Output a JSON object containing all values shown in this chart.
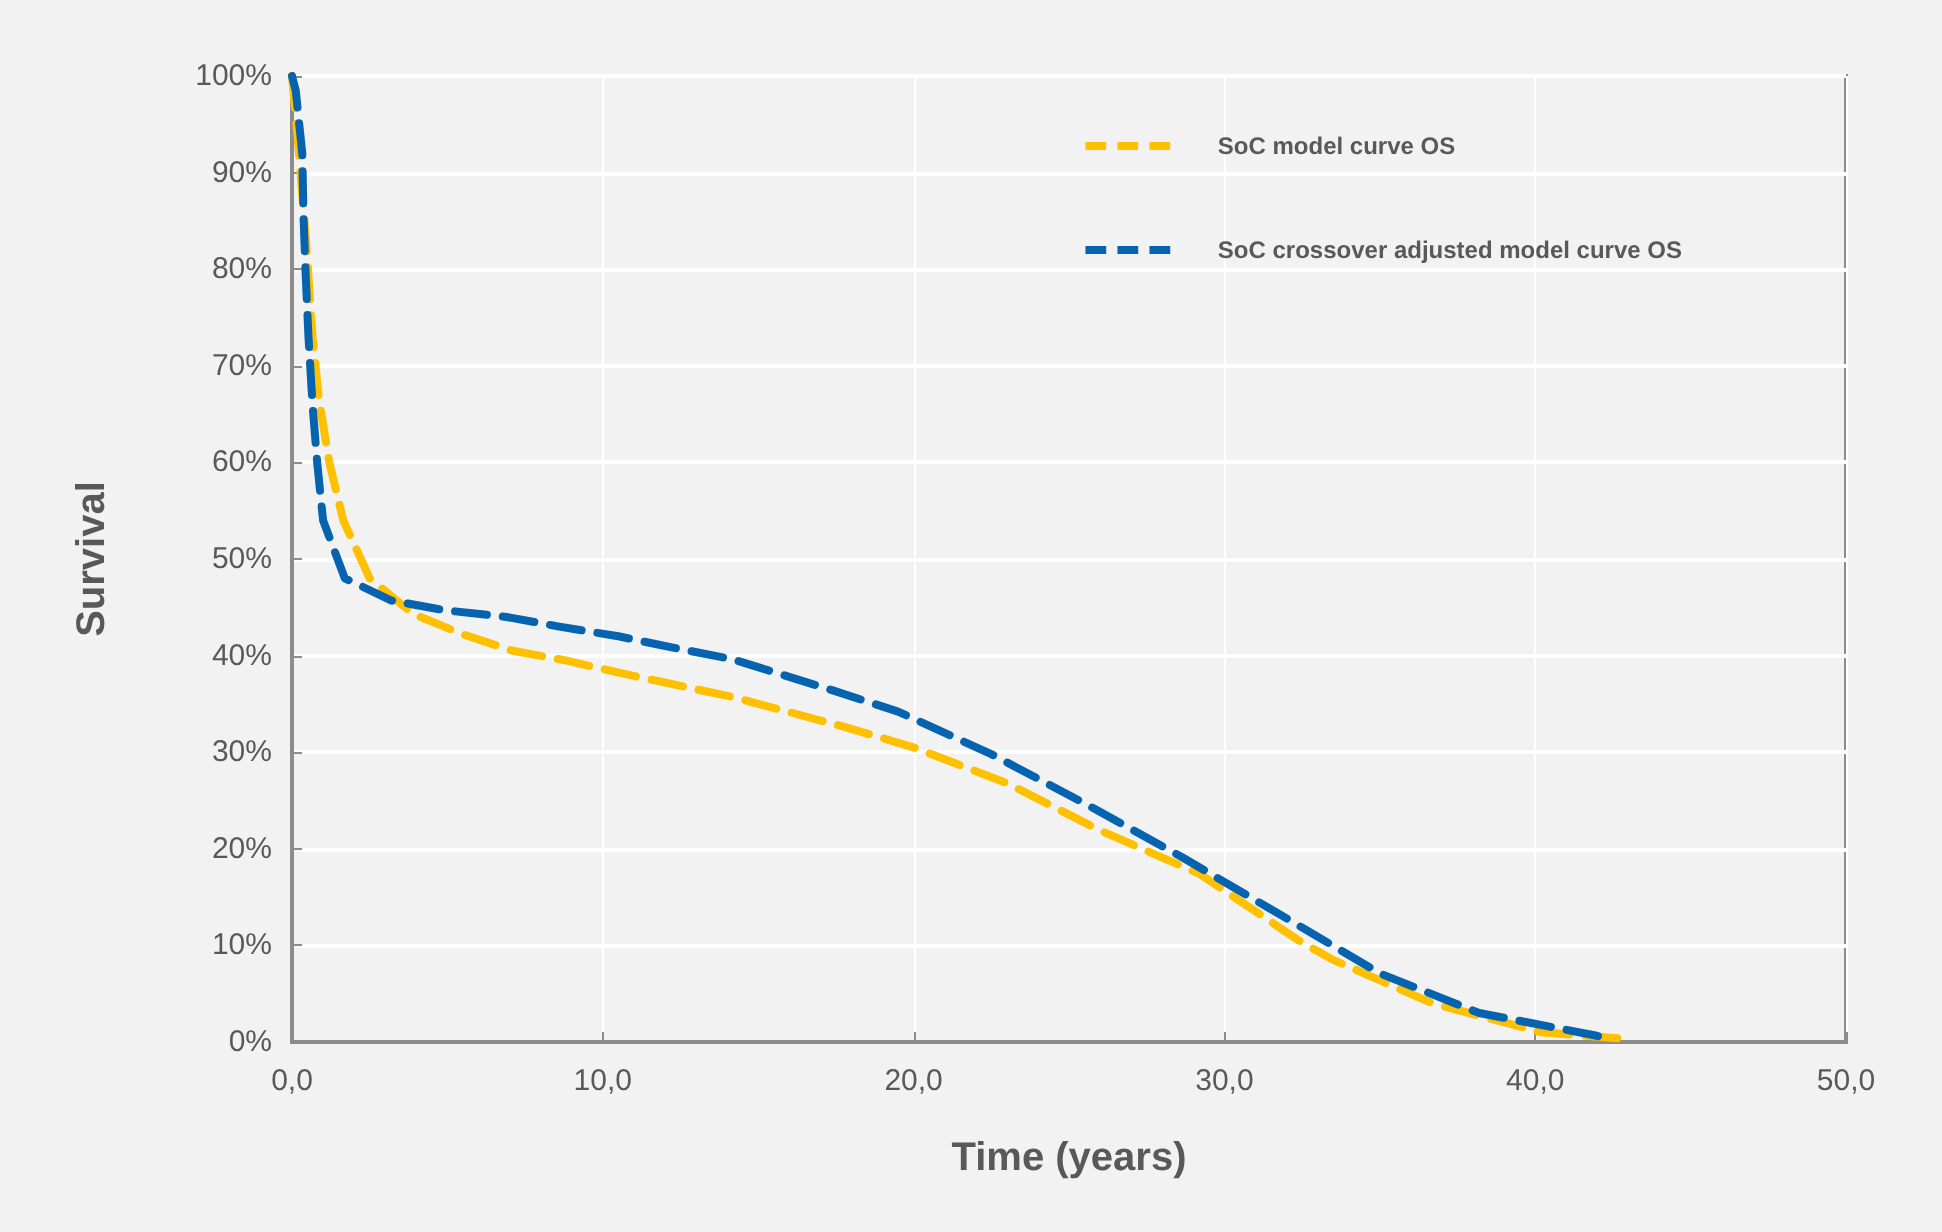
{
  "chart_data": {
    "type": "line",
    "xlabel": "Time (years)",
    "ylabel": "Survival",
    "xlim": [
      0,
      50
    ],
    "ylim": [
      0,
      100
    ],
    "xticks": [
      {
        "value": 0,
        "label": "0,0"
      },
      {
        "value": 10,
        "label": "10,0"
      },
      {
        "value": 20,
        "label": "20,0"
      },
      {
        "value": 30,
        "label": "30,0"
      },
      {
        "value": 40,
        "label": "40,0"
      },
      {
        "value": 50,
        "label": "50,0"
      }
    ],
    "yticks": [
      {
        "value": 0,
        "label": "0%"
      },
      {
        "value": 10,
        "label": "10%"
      },
      {
        "value": 20,
        "label": "20%"
      },
      {
        "value": 30,
        "label": "30%"
      },
      {
        "value": 40,
        "label": "40%"
      },
      {
        "value": 50,
        "label": "50%"
      },
      {
        "value": 60,
        "label": "60%"
      },
      {
        "value": 70,
        "label": "70%"
      },
      {
        "value": 80,
        "label": "80%"
      },
      {
        "value": 90,
        "label": "90%"
      },
      {
        "value": 100,
        "label": "100%"
      }
    ],
    "grid": true,
    "legend": "top right",
    "line_style": "dashed",
    "marker": "none",
    "series": [
      {
        "name": "SoC model curve OS",
        "color": "#ffc000",
        "x": [
          0,
          0.2,
          0.45,
          0.66,
          0.87,
          1.2,
          1.65,
          2.5,
          3.9,
          5.5,
          7.1,
          8.8,
          10.7,
          14.2,
          17.8,
          20,
          23,
          26,
          29.2,
          32.4,
          33.5,
          36.7,
          40.2,
          43
        ],
        "values": [
          100,
          93,
          83,
          73,
          66.5,
          60,
          54,
          48,
          44.3,
          42.2,
          40.5,
          39.5,
          38.1,
          35.7,
          32.6,
          30.5,
          26.8,
          21.9,
          17.4,
          10.5,
          8.5,
          4,
          1,
          0.3
        ]
      },
      {
        "name": "SoC crossover adjusted model curve OS",
        "color": "#0563b0",
        "x": [
          0,
          0.12,
          0.33,
          0.37,
          0.44,
          0.53,
          0.66,
          0.81,
          1,
          1.7,
          3.2,
          4.9,
          6.9,
          8.6,
          10.5,
          12.3,
          14.2,
          17.4,
          19.5,
          22.5,
          25.5,
          28.6,
          32,
          35,
          38.2,
          41.9,
          42.3
        ],
        "values": [
          100,
          98.5,
          92,
          85.5,
          79.5,
          73,
          66,
          60,
          54,
          48,
          45.7,
          44.7,
          44,
          43,
          42,
          40.8,
          39.6,
          36.4,
          34.2,
          29.8,
          24.7,
          19.2,
          12.8,
          7.1,
          3,
          0.7,
          0.4
        ]
      }
    ]
  }
}
